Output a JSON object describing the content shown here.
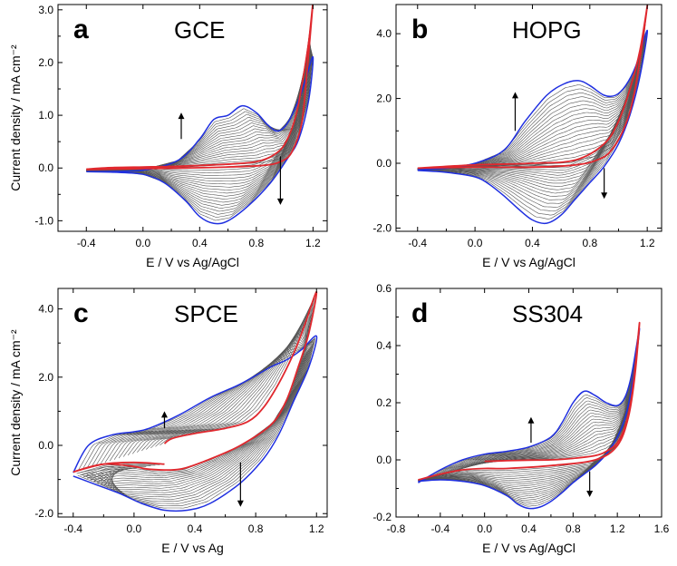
{
  "colors": {
    "first_cycle": "#e0282e",
    "last_cycle": "#1f2fe0",
    "intermediate": "#555555"
  },
  "chart_data": [
    {
      "type": "line",
      "letter": "a",
      "title": "GCE",
      "xlabel": "E / V vs Ag/AgCl",
      "ylabel": "Current density / mA cm⁻²",
      "xlim": [
        -0.6,
        1.3
      ],
      "ylim": [
        -1.2,
        3.1
      ],
      "xticks": [
        -0.4,
        0.0,
        0.4,
        0.8,
        1.2
      ],
      "xtick_labels": [
        "-0.4",
        "0.0",
        "0.4",
        "0.8",
        "1.2"
      ],
      "yticks": [
        -1.0,
        0.0,
        1.0,
        2.0,
        3.0
      ],
      "ytick_labels": [
        "-1.0",
        "0.0",
        "1.0",
        "2.0",
        "3.0"
      ],
      "arrows": [
        {
          "x": 0.27,
          "y_from": 0.55,
          "y_to": 1.05,
          "direction": "up"
        },
        {
          "x": 0.97,
          "y_from": 0.22,
          "y_to": -0.7,
          "direction": "down"
        }
      ],
      "series": [
        {
          "name": "first scan (red)",
          "x": [
            -0.4,
            0.0,
            0.3,
            0.6,
            0.85,
            0.97,
            1.05,
            1.12,
            1.16,
            1.2,
            1.17,
            1.12,
            1.08,
            1.02,
            0.95,
            0.8,
            0.5,
            0.2,
            0.0,
            -0.2,
            -0.4
          ],
          "y": [
            -0.03,
            -0.01,
            0.0,
            0.02,
            0.05,
            0.12,
            0.3,
            0.85,
            1.9,
            3.15,
            2.4,
            1.55,
            1.0,
            0.55,
            0.3,
            0.12,
            0.06,
            0.03,
            0.02,
            0.01,
            -0.02
          ]
        },
        {
          "name": "last scan (blue)",
          "x": [
            -0.4,
            0.0,
            0.25,
            0.4,
            0.5,
            0.6,
            0.7,
            0.8,
            0.88,
            0.95,
            1.02,
            1.1,
            1.15,
            1.2,
            1.17,
            1.1,
            1.02,
            0.9,
            0.75,
            0.6,
            0.5,
            0.4,
            0.3,
            0.15,
            0.0,
            -0.2,
            -0.4
          ],
          "y": [
            -0.07,
            -0.04,
            0.15,
            0.55,
            0.92,
            1.0,
            1.18,
            1.05,
            0.82,
            0.7,
            0.85,
            1.3,
            1.7,
            2.1,
            1.3,
            0.55,
            0.18,
            -0.28,
            -0.7,
            -1.0,
            -1.05,
            -0.92,
            -0.62,
            -0.28,
            -0.12,
            -0.08,
            -0.07
          ]
        }
      ]
    },
    {
      "type": "line",
      "letter": "b",
      "title": "HOPG",
      "xlabel": "E / V vs Ag/AgCl",
      "ylabel": "",
      "xlim": [
        -0.55,
        1.3
      ],
      "ylim": [
        -2.1,
        4.9
      ],
      "xticks": [
        -0.4,
        0.0,
        0.4,
        0.8,
        1.2
      ],
      "xtick_labels": [
        "-0.4",
        "0.0",
        "0.4",
        "0.8",
        "1.2"
      ],
      "yticks": [
        -2.0,
        0.0,
        2.0,
        4.0
      ],
      "ytick_labels": [
        "-2.0",
        "0.0",
        "2.0",
        "4.0"
      ],
      "arrows": [
        {
          "x": 0.28,
          "y_from": 1.0,
          "y_to": 2.2,
          "direction": "up"
        },
        {
          "x": 0.9,
          "y_from": -0.15,
          "y_to": -1.1,
          "direction": "down"
        }
      ],
      "series": [
        {
          "name": "first scan (red)",
          "x": [
            -0.4,
            0.0,
            0.4,
            0.7,
            0.85,
            0.95,
            1.05,
            1.12,
            1.2,
            1.15,
            1.08,
            1.0,
            0.9,
            0.7,
            0.4,
            0.0,
            -0.4
          ],
          "y": [
            -0.15,
            -0.12,
            -0.12,
            -0.05,
            0.1,
            0.4,
            1.2,
            2.4,
            4.85,
            3.5,
            2.3,
            1.3,
            0.6,
            0.1,
            0.0,
            -0.05,
            -0.15
          ]
        },
        {
          "name": "last scan (blue)",
          "x": [
            -0.4,
            -0.2,
            0.0,
            0.2,
            0.35,
            0.5,
            0.62,
            0.72,
            0.8,
            0.9,
            0.98,
            1.05,
            1.12,
            1.2,
            1.15,
            1.08,
            1.0,
            0.9,
            0.8,
            0.7,
            0.6,
            0.5,
            0.4,
            0.3,
            0.2,
            0.1,
            0.0,
            -0.2,
            -0.4
          ],
          "y": [
            -0.2,
            -0.15,
            0.0,
            0.4,
            1.3,
            2.1,
            2.45,
            2.55,
            2.4,
            2.1,
            2.1,
            2.4,
            3.0,
            4.1,
            2.7,
            1.5,
            0.6,
            -0.1,
            -0.6,
            -1.1,
            -1.6,
            -1.85,
            -1.75,
            -1.4,
            -1.0,
            -0.65,
            -0.42,
            -0.28,
            -0.22
          ]
        }
      ]
    },
    {
      "type": "line",
      "letter": "c",
      "title": "SPCE",
      "xlabel": "E / V vs Ag",
      "ylabel": "Current density / mA cm⁻²",
      "xlim": [
        -0.5,
        1.27
      ],
      "ylim": [
        -2.1,
        4.6
      ],
      "xticks": [
        -0.4,
        0.0,
        0.4,
        0.8,
        1.2
      ],
      "xtick_labels": [
        "-0.4",
        "0.0",
        "0.4",
        "0.8",
        "1.2"
      ],
      "yticks": [
        -2.0,
        0.0,
        2.0,
        4.0
      ],
      "ytick_labels": [
        "-2.0",
        "0.0",
        "2.0",
        "4.0"
      ],
      "arrows": [
        {
          "x": 0.2,
          "y_from": 0.5,
          "y_to": 1.0,
          "direction": "up"
        },
        {
          "x": 0.7,
          "y_from": -0.5,
          "y_to": -1.8,
          "direction": "down"
        }
      ],
      "series": [
        {
          "name": "first scan (red)",
          "x": [
            0.2,
            0.25,
            0.4,
            0.6,
            0.75,
            0.85,
            0.95,
            1.05,
            1.12,
            1.2,
            1.15,
            1.08,
            1.0,
            0.9,
            0.7,
            0.5,
            0.3,
            0.1,
            0.0,
            -0.2,
            -0.4,
            -0.2,
            0.0,
            0.2
          ],
          "y": [
            0.05,
            0.2,
            0.35,
            0.5,
            0.7,
            1.1,
            1.8,
            2.7,
            3.5,
            4.5,
            3.3,
            2.3,
            1.3,
            0.6,
            0.0,
            -0.4,
            -0.7,
            -0.7,
            -0.62,
            -0.55,
            -0.78,
            -0.55,
            -0.5,
            -0.55
          ]
        },
        {
          "name": "last scan (blue)",
          "x": [
            -0.4,
            -0.3,
            -0.15,
            0.0,
            0.1,
            0.3,
            0.5,
            0.7,
            0.9,
            1.0,
            1.1,
            1.2,
            1.15,
            1.05,
            0.95,
            0.85,
            0.7,
            0.5,
            0.35,
            0.2,
            0.05,
            -0.1,
            -0.25,
            -0.4
          ],
          "y": [
            -0.8,
            0.0,
            0.3,
            0.4,
            0.5,
            0.9,
            1.4,
            1.8,
            2.3,
            2.5,
            2.8,
            3.2,
            2.3,
            1.3,
            0.3,
            -0.4,
            -1.1,
            -1.7,
            -1.9,
            -1.9,
            -1.7,
            -1.4,
            -1.15,
            -0.9
          ]
        }
      ]
    },
    {
      "type": "line",
      "letter": "d",
      "title": "SS304",
      "xlabel": "E / V vs Ag/AgCl",
      "ylabel": "",
      "xlim": [
        -0.8,
        1.6
      ],
      "ylim": [
        -0.2,
        0.6
      ],
      "xticks": [
        -0.8,
        -0.4,
        0.0,
        0.4,
        0.8,
        1.2,
        1.6
      ],
      "xtick_labels": [
        "-0.8",
        "-0.4",
        "0.0",
        "0.4",
        "0.8",
        "1.2",
        "1.6"
      ],
      "yticks": [
        -0.2,
        0.0,
        0.2,
        0.4,
        0.6
      ],
      "ytick_labels": [
        "-0.2",
        "0.0",
        "0.2",
        "0.4",
        "0.6"
      ],
      "arrows": [
        {
          "x": 0.42,
          "y_from": 0.06,
          "y_to": 0.15,
          "direction": "up"
        },
        {
          "x": 0.95,
          "y_from": -0.04,
          "y_to": -0.13,
          "direction": "down"
        }
      ],
      "series": [
        {
          "name": "first scan (red)",
          "x": [
            0.0,
            0.2,
            0.4,
            0.6,
            0.8,
            1.0,
            1.1,
            1.2,
            1.28,
            1.34,
            1.4,
            1.36,
            1.3,
            1.2,
            1.0,
            0.6,
            0.2,
            0.0,
            -0.2,
            -0.4,
            -0.6
          ],
          "y": [
            -0.005,
            -0.003,
            -0.001,
            0.0,
            0.005,
            0.015,
            0.03,
            0.06,
            0.13,
            0.25,
            0.48,
            0.3,
            0.15,
            0.05,
            0.0,
            -0.02,
            -0.03,
            -0.03,
            -0.035,
            -0.05,
            -0.07
          ]
        },
        {
          "name": "last scan (blue)",
          "x": [
            -0.6,
            -0.4,
            -0.2,
            0.0,
            0.2,
            0.4,
            0.6,
            0.7,
            0.8,
            0.9,
            1.0,
            1.1,
            1.2,
            1.27,
            1.33,
            1.4,
            1.35,
            1.28,
            1.2,
            1.1,
            1.0,
            0.9,
            0.8,
            0.7,
            0.6,
            0.5,
            0.4,
            0.3,
            0.2,
            0.0,
            -0.2,
            -0.4,
            -0.6
          ],
          "y": [
            -0.08,
            -0.035,
            0.0,
            0.02,
            0.03,
            0.045,
            0.08,
            0.13,
            0.2,
            0.24,
            0.225,
            0.2,
            0.19,
            0.22,
            0.3,
            0.46,
            0.3,
            0.16,
            0.08,
            0.02,
            -0.02,
            -0.05,
            -0.08,
            -0.115,
            -0.145,
            -0.165,
            -0.17,
            -0.155,
            -0.125,
            -0.09,
            -0.075,
            -0.07,
            -0.075
          ]
        }
      ]
    }
  ]
}
